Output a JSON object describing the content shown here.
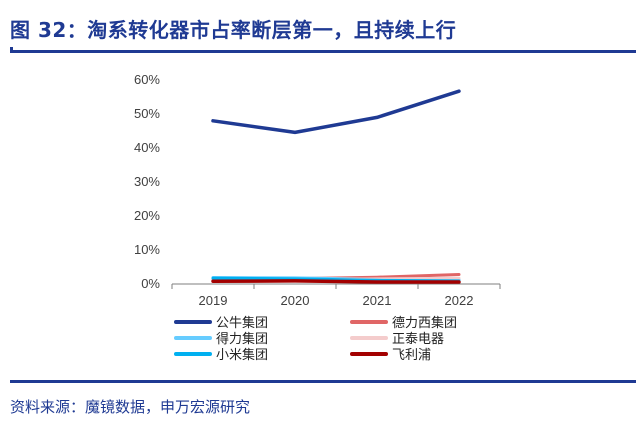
{
  "header": {
    "title": "图 32：淘系转化器市占率断层第一，且持续上行"
  },
  "footer": {
    "source": "资料来源：魔镜数据，申万宏源研究"
  },
  "chart_data": {
    "type": "line",
    "x": [
      "2019",
      "2020",
      "2021",
      "2022"
    ],
    "ylim": [
      0,
      60
    ],
    "yticks": [
      "0%",
      "10%",
      "20%",
      "30%",
      "40%",
      "50%",
      "60%"
    ],
    "grid": false,
    "legend_position": "bottom",
    "series": [
      {
        "name": "公牛集团",
        "color": "#1F3A93",
        "width": 3.5,
        "values": [
          48.0,
          44.6,
          49.0,
          56.7
        ]
      },
      {
        "name": "德力西集团",
        "color": "#E06666",
        "width": 3,
        "values": [
          1.4,
          1.6,
          2.0,
          2.8
        ]
      },
      {
        "name": "得力集团",
        "color": "#66CCFF",
        "width": 3,
        "values": [
          1.9,
          1.8,
          1.4,
          1.2
        ]
      },
      {
        "name": "正泰电器",
        "color": "#F4CCCC",
        "width": 3,
        "values": [
          1.1,
          1.2,
          1.5,
          1.7
        ]
      },
      {
        "name": "小米集团",
        "color": "#00B0F0",
        "width": 3,
        "values": [
          1.7,
          1.5,
          1.1,
          0.9
        ]
      },
      {
        "name": "飞利浦",
        "color": "#A30000",
        "width": 3.5,
        "values": [
          0.8,
          0.9,
          0.6,
          0.6
        ]
      }
    ]
  }
}
